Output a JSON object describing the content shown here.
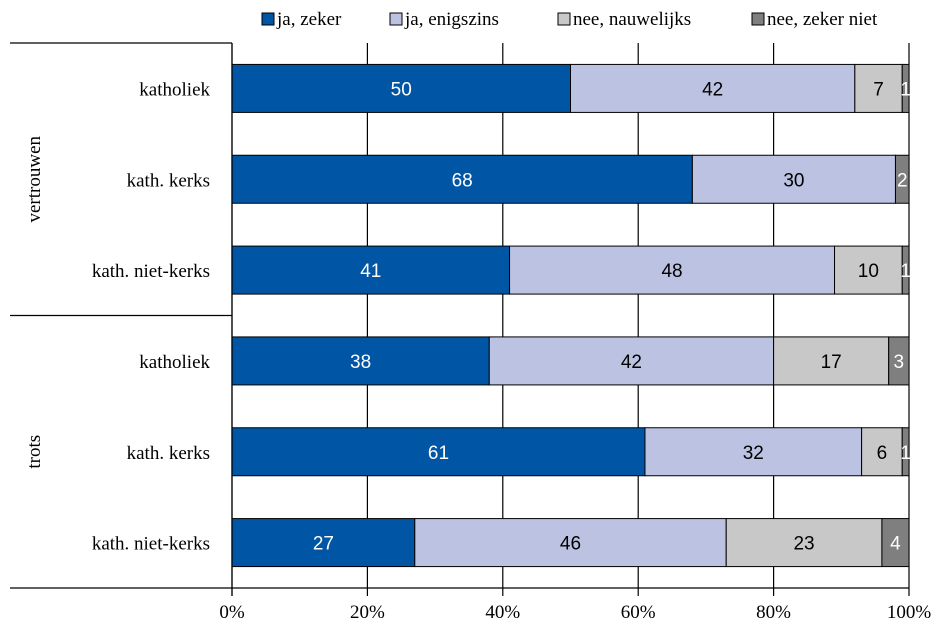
{
  "chart_data": {
    "type": "bar",
    "orientation": "horizontal",
    "stacked": true,
    "percent_stacked": true,
    "legend_position": "top",
    "grid": true,
    "xlim": [
      0,
      100
    ],
    "x_ticks": [
      "0%",
      "20%",
      "40%",
      "60%",
      "80%",
      "100%"
    ],
    "x_tick_values": [
      0,
      20,
      40,
      60,
      80,
      100
    ],
    "groups": [
      {
        "label": "vertrouwen",
        "categories": [
          "katholiek",
          "kath. kerks",
          "kath. niet-kerks"
        ]
      },
      {
        "label": "trots",
        "categories": [
          "katholiek",
          "kath. kerks",
          "kath. niet-kerks"
        ]
      }
    ],
    "series": [
      {
        "name": "ja, zeker",
        "color": "#0055A4",
        "label_color": "#ffffff",
        "values": [
          50,
          68,
          41,
          38,
          61,
          27
        ]
      },
      {
        "name": "ja, enigszins",
        "color": "#BCC3E2",
        "label_color": "#000000",
        "values": [
          42,
          30,
          48,
          42,
          32,
          46
        ]
      },
      {
        "name": "nee, nauwelijks",
        "color": "#C8C8C8",
        "label_color": "#000000",
        "values": [
          7,
          0,
          10,
          17,
          6,
          23
        ]
      },
      {
        "name": "nee, zeker niet",
        "color": "#7F7F7F",
        "label_color": "#ffffff",
        "values": [
          1,
          2,
          1,
          3,
          1,
          4
        ]
      }
    ]
  }
}
